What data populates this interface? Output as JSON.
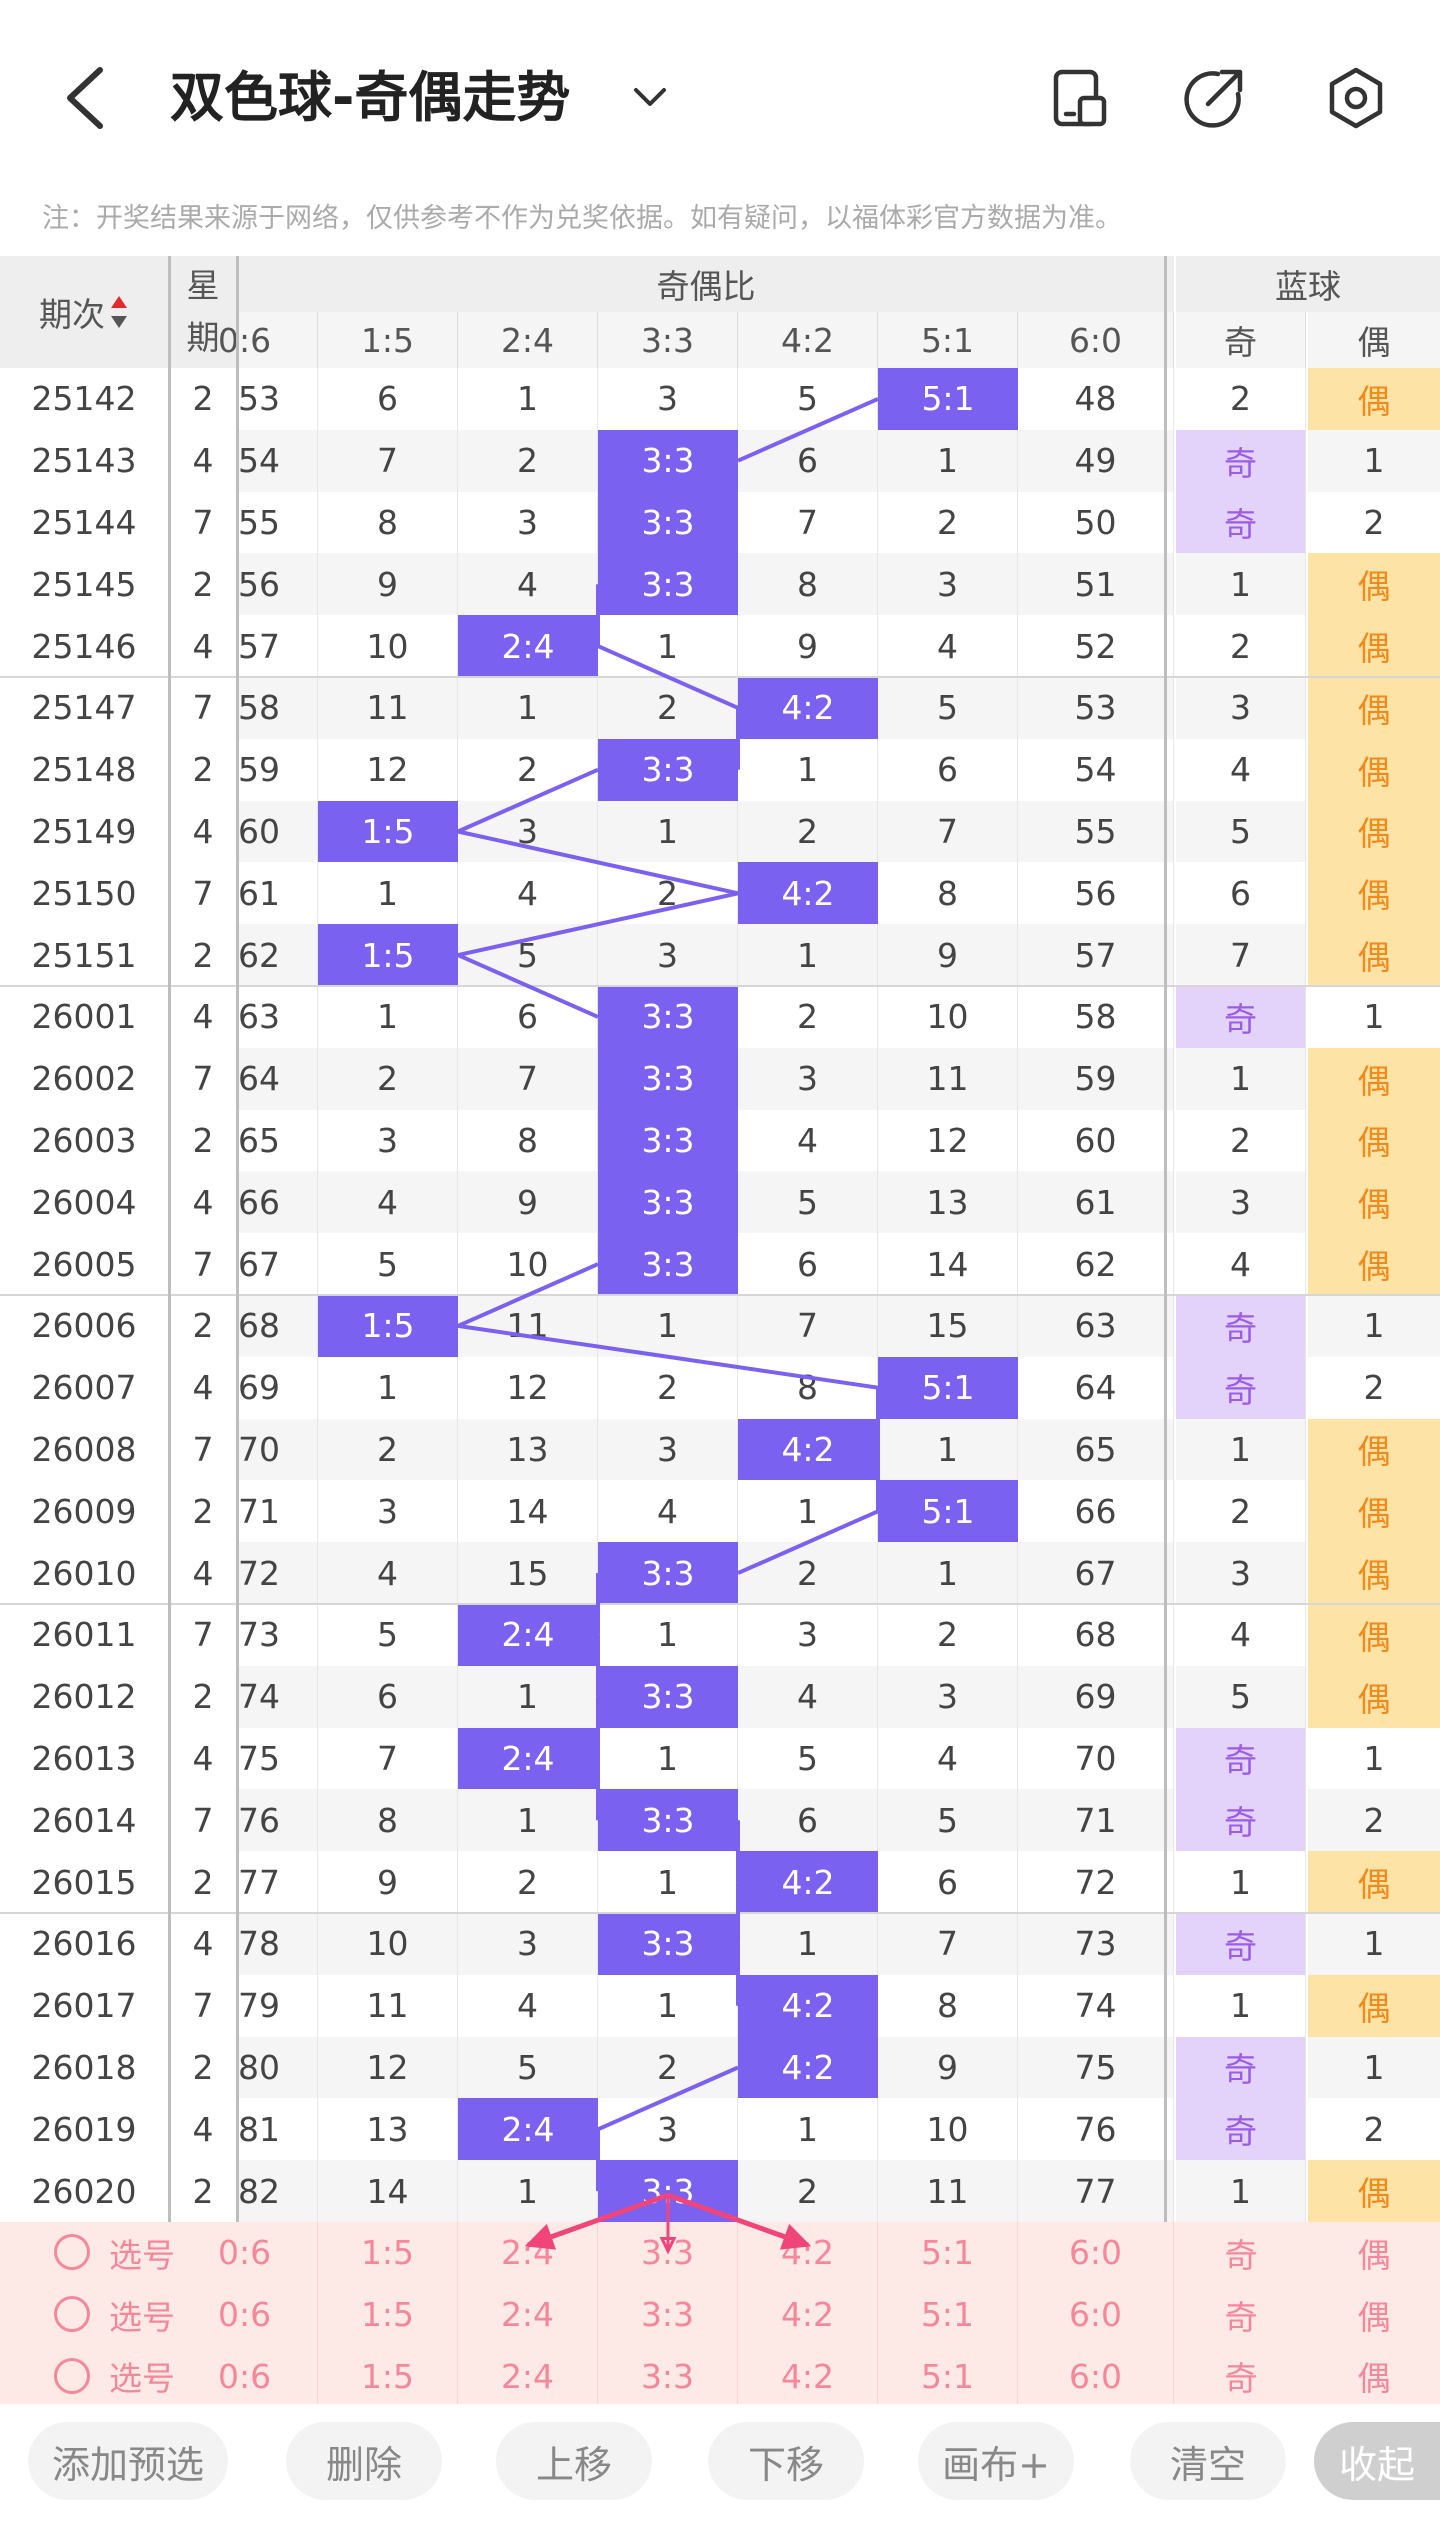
{
  "header": {
    "title": "双色球-奇偶走势",
    "notice": "注：开奖结果来源于网络，仅供参考不作为兑奖依据。如有疑问，以福体彩官方数据为准。"
  },
  "table": {
    "col_period": "期次",
    "col_week": "星期",
    "group_ratio": "奇偶比",
    "group_blue": "蓝球",
    "ratio_labels": [
      "0:6",
      "1:5",
      "2:4",
      "3:3",
      "4:2",
      "5:1",
      "6:0"
    ],
    "blue_labels": [
      "奇",
      "偶"
    ],
    "rows": [
      {
        "p": "25142",
        "w": "2",
        "r": [
          "53",
          "6",
          "1",
          "3",
          "5",
          "5:1",
          "48"
        ],
        "b": [
          "2",
          "偶"
        ],
        "hi": 5,
        "bo": 1
      },
      {
        "p": "25143",
        "w": "4",
        "r": [
          "54",
          "7",
          "2",
          "3:3",
          "6",
          "1",
          "49"
        ],
        "b": [
          "奇",
          "1"
        ],
        "hi": 3,
        "bo": 0
      },
      {
        "p": "25144",
        "w": "7",
        "r": [
          "55",
          "8",
          "3",
          "3:3",
          "7",
          "2",
          "50"
        ],
        "b": [
          "奇",
          "2"
        ],
        "hi": 3,
        "bo": 0
      },
      {
        "p": "25145",
        "w": "2",
        "r": [
          "56",
          "9",
          "4",
          "3:3",
          "8",
          "3",
          "51"
        ],
        "b": [
          "1",
          "偶"
        ],
        "hi": 3,
        "bo": 1
      },
      {
        "p": "25146",
        "w": "4",
        "r": [
          "57",
          "10",
          "2:4",
          "1",
          "9",
          "4",
          "52"
        ],
        "b": [
          "2",
          "偶"
        ],
        "hi": 2,
        "bo": 1
      },
      {
        "p": "25147",
        "w": "7",
        "r": [
          "58",
          "11",
          "1",
          "2",
          "4:2",
          "5",
          "53"
        ],
        "b": [
          "3",
          "偶"
        ],
        "hi": 4,
        "bo": 1
      },
      {
        "p": "25148",
        "w": "2",
        "r": [
          "59",
          "12",
          "2",
          "3:3",
          "1",
          "6",
          "54"
        ],
        "b": [
          "4",
          "偶"
        ],
        "hi": 3,
        "bo": 1
      },
      {
        "p": "25149",
        "w": "4",
        "r": [
          "60",
          "1:5",
          "3",
          "1",
          "2",
          "7",
          "55"
        ],
        "b": [
          "5",
          "偶"
        ],
        "hi": 1,
        "bo": 1
      },
      {
        "p": "25150",
        "w": "7",
        "r": [
          "61",
          "1",
          "4",
          "2",
          "4:2",
          "8",
          "56"
        ],
        "b": [
          "6",
          "偶"
        ],
        "hi": 4,
        "bo": 1
      },
      {
        "p": "25151",
        "w": "2",
        "r": [
          "62",
          "1:5",
          "5",
          "3",
          "1",
          "9",
          "57"
        ],
        "b": [
          "7",
          "偶"
        ],
        "hi": 1,
        "bo": 1
      },
      {
        "p": "26001",
        "w": "4",
        "r": [
          "63",
          "1",
          "6",
          "3:3",
          "2",
          "10",
          "58"
        ],
        "b": [
          "奇",
          "1"
        ],
        "hi": 3,
        "bo": 0
      },
      {
        "p": "26002",
        "w": "7",
        "r": [
          "64",
          "2",
          "7",
          "3:3",
          "3",
          "11",
          "59"
        ],
        "b": [
          "1",
          "偶"
        ],
        "hi": 3,
        "bo": 1
      },
      {
        "p": "26003",
        "w": "2",
        "r": [
          "65",
          "3",
          "8",
          "3:3",
          "4",
          "12",
          "60"
        ],
        "b": [
          "2",
          "偶"
        ],
        "hi": 3,
        "bo": 1
      },
      {
        "p": "26004",
        "w": "4",
        "r": [
          "66",
          "4",
          "9",
          "3:3",
          "5",
          "13",
          "61"
        ],
        "b": [
          "3",
          "偶"
        ],
        "hi": 3,
        "bo": 1
      },
      {
        "p": "26005",
        "w": "7",
        "r": [
          "67",
          "5",
          "10",
          "3:3",
          "6",
          "14",
          "62"
        ],
        "b": [
          "4",
          "偶"
        ],
        "hi": 3,
        "bo": 1
      },
      {
        "p": "26006",
        "w": "2",
        "r": [
          "68",
          "1:5",
          "11",
          "1",
          "7",
          "15",
          "63"
        ],
        "b": [
          "奇",
          "1"
        ],
        "hi": 1,
        "bo": 0
      },
      {
        "p": "26007",
        "w": "4",
        "r": [
          "69",
          "1",
          "12",
          "2",
          "8",
          "5:1",
          "64"
        ],
        "b": [
          "奇",
          "2"
        ],
        "hi": 5,
        "bo": 0
      },
      {
        "p": "26008",
        "w": "7",
        "r": [
          "70",
          "2",
          "13",
          "3",
          "4:2",
          "1",
          "65"
        ],
        "b": [
          "1",
          "偶"
        ],
        "hi": 4,
        "bo": 1
      },
      {
        "p": "26009",
        "w": "2",
        "r": [
          "71",
          "3",
          "14",
          "4",
          "1",
          "5:1",
          "66"
        ],
        "b": [
          "2",
          "偶"
        ],
        "hi": 5,
        "bo": 1
      },
      {
        "p": "26010",
        "w": "4",
        "r": [
          "72",
          "4",
          "15",
          "3:3",
          "2",
          "1",
          "67"
        ],
        "b": [
          "3",
          "偶"
        ],
        "hi": 3,
        "bo": 1
      },
      {
        "p": "26011",
        "w": "7",
        "r": [
          "73",
          "5",
          "2:4",
          "1",
          "3",
          "2",
          "68"
        ],
        "b": [
          "4",
          "偶"
        ],
        "hi": 2,
        "bo": 1
      },
      {
        "p": "26012",
        "w": "2",
        "r": [
          "74",
          "6",
          "1",
          "3:3",
          "4",
          "3",
          "69"
        ],
        "b": [
          "5",
          "偶"
        ],
        "hi": 3,
        "bo": 1
      },
      {
        "p": "26013",
        "w": "4",
        "r": [
          "75",
          "7",
          "2:4",
          "1",
          "5",
          "4",
          "70"
        ],
        "b": [
          "奇",
          "1"
        ],
        "hi": 2,
        "bo": 0
      },
      {
        "p": "26014",
        "w": "7",
        "r": [
          "76",
          "8",
          "1",
          "3:3",
          "6",
          "5",
          "71"
        ],
        "b": [
          "奇",
          "2"
        ],
        "hi": 3,
        "bo": 0
      },
      {
        "p": "26015",
        "w": "2",
        "r": [
          "77",
          "9",
          "2",
          "1",
          "4:2",
          "6",
          "72"
        ],
        "b": [
          "1",
          "偶"
        ],
        "hi": 4,
        "bo": 1
      },
      {
        "p": "26016",
        "w": "4",
        "r": [
          "78",
          "10",
          "3",
          "3:3",
          "1",
          "7",
          "73"
        ],
        "b": [
          "奇",
          "1"
        ],
        "hi": 3,
        "bo": 0
      },
      {
        "p": "26017",
        "w": "7",
        "r": [
          "79",
          "11",
          "4",
          "1",
          "4:2",
          "8",
          "74"
        ],
        "b": [
          "1",
          "偶"
        ],
        "hi": 4,
        "bo": 1
      },
      {
        "p": "26018",
        "w": "2",
        "r": [
          "80",
          "12",
          "5",
          "2",
          "4:2",
          "9",
          "75"
        ],
        "b": [
          "奇",
          "1"
        ],
        "hi": 4,
        "bo": 0
      },
      {
        "p": "26019",
        "w": "4",
        "r": [
          "81",
          "13",
          "2:4",
          "3",
          "1",
          "10",
          "76"
        ],
        "b": [
          "奇",
          "2"
        ],
        "hi": 2,
        "bo": 0
      },
      {
        "p": "26020",
        "w": "2",
        "r": [
          "82",
          "14",
          "1",
          "3:3",
          "2",
          "11",
          "77"
        ],
        "b": [
          "1",
          "偶"
        ],
        "hi": 3,
        "bo": 1
      }
    ],
    "pick_label": "选号",
    "pick_ratio": [
      "0:6",
      "1:5",
      "2:4",
      "3:3",
      "4:2",
      "5:1",
      "6:0"
    ],
    "pick_blue": [
      "奇",
      "偶"
    ]
  },
  "toolbar": {
    "add": "添加预选",
    "delete": "删除",
    "up": "上移",
    "down": "下移",
    "canvas": "画布+",
    "clear": "清空",
    "collapse": "收起"
  },
  "colors": {
    "ratio_highlight": "#7b61f0",
    "odd_bg": "#e3d3fb",
    "odd_text": "#9b5de5",
    "even_bg": "#fde3a6",
    "even_text": "#f08a1c",
    "pick_bg": "#fde9e6",
    "pick_text": "#f4889a",
    "arrow": "#f0457a"
  }
}
